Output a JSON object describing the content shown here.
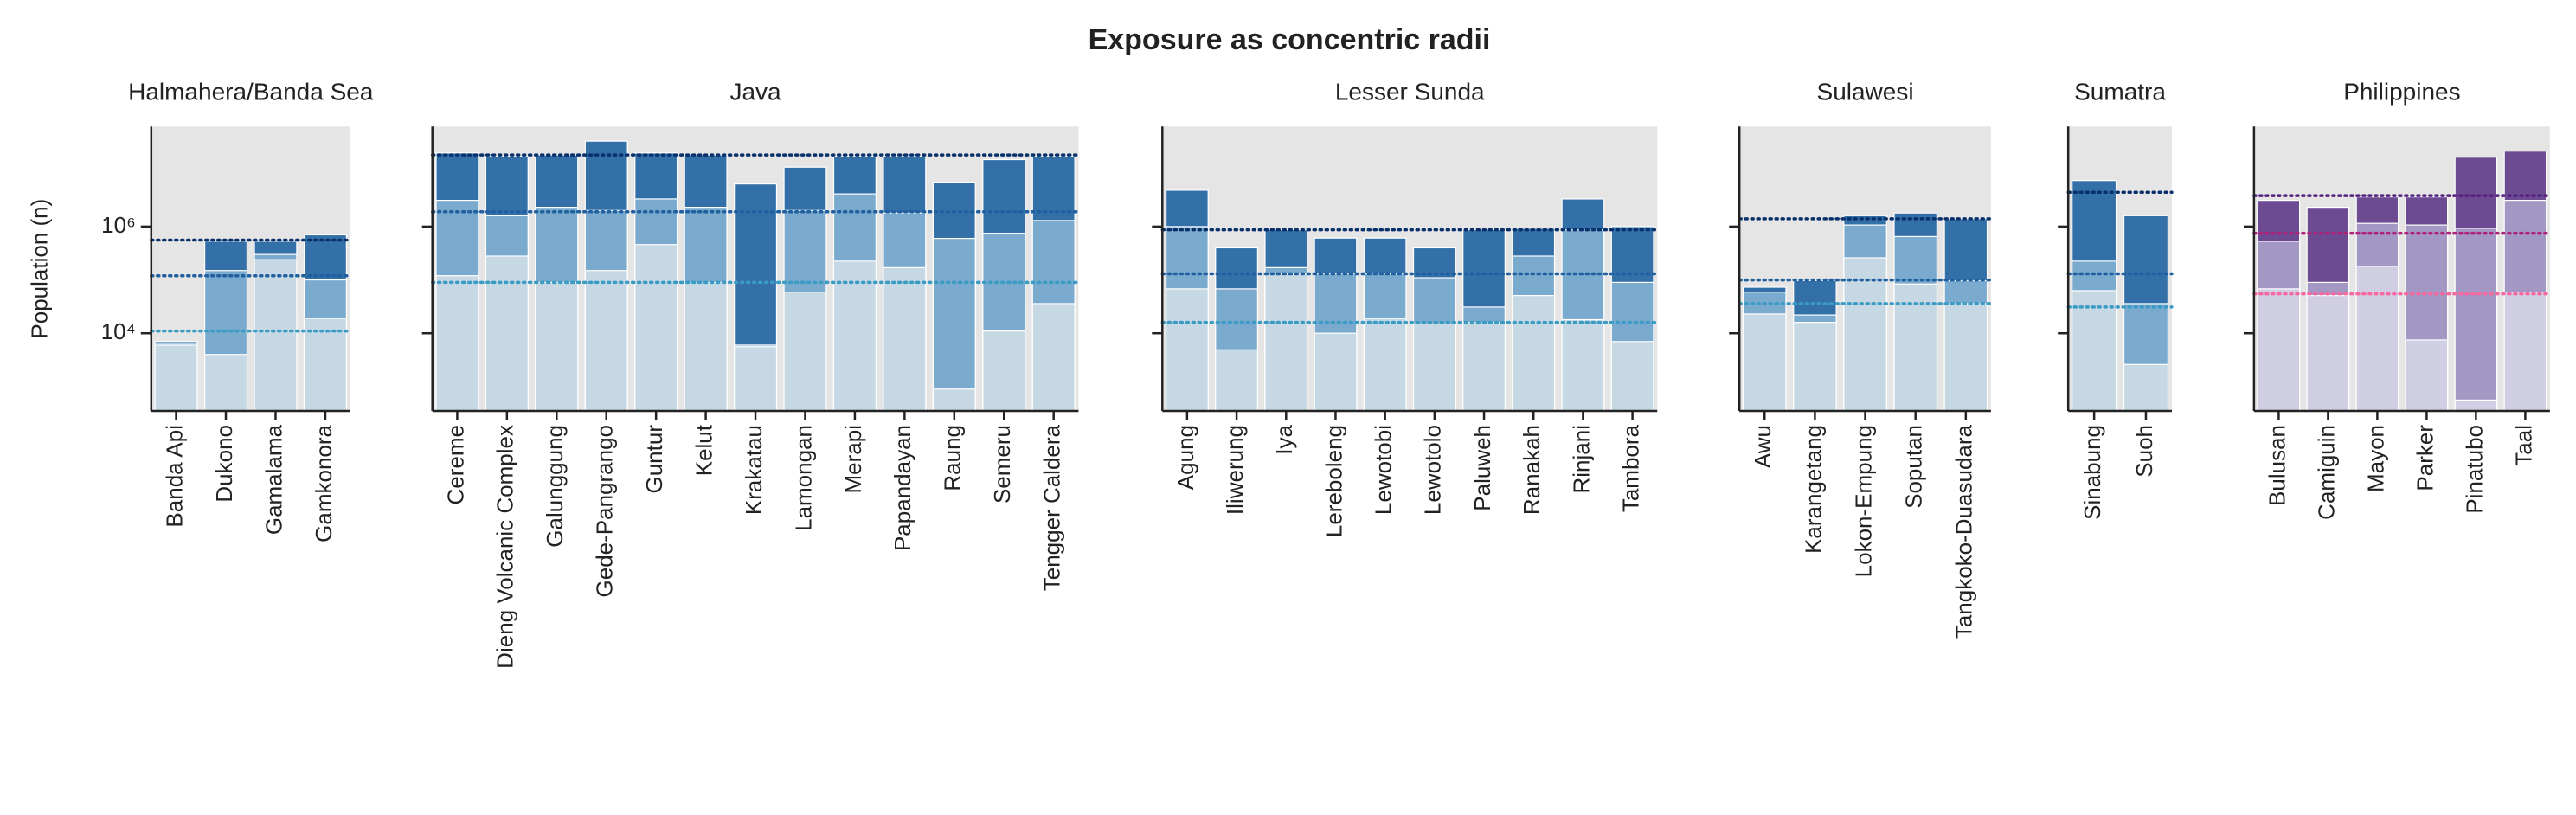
{
  "title": "Exposure as concentric radii",
  "chart_data": [
    {
      "type": "bar",
      "title": "Halmahera/Banda Sea",
      "ylabel": "Population (n)",
      "log_scale": true,
      "ylim": [
        350,
        75000000
      ],
      "yticks": [
        {
          "value": 10000,
          "label": "10⁴"
        },
        {
          "value": 1000000,
          "label": "10⁶"
        }
      ],
      "categories": [
        "Banda Api",
        "Dukono",
        "Gamalama",
        "Gamkonora"
      ],
      "series": [
        {
          "color": "#c5d8e3",
          "line_color": "#3a9bc5",
          "reference": 11000,
          "values": [
            6000,
            4000,
            240000,
            19000
          ]
        },
        {
          "color": "#7aaacd",
          "line_color": "#2060a0",
          "reference": 120000,
          "values": [
            6500,
            150000,
            300000,
            100000
          ]
        },
        {
          "color": "#3470a8",
          "line_color": "#08306b",
          "reference": 560000,
          "values": [
            7000,
            530000,
            530000,
            700000
          ]
        }
      ]
    },
    {
      "type": "bar",
      "title": "Java",
      "log_scale": true,
      "ylim": [
        350,
        75000000
      ],
      "yticks": [
        10000,
        1000000
      ],
      "categories": [
        "Cereme",
        "Dieng Volcanic Complex",
        "Galunggung",
        "Gede-Pangrango",
        "Guntur",
        "Kelut",
        "Krakatau",
        "Lamongan",
        "Merapi",
        "Papandayan",
        "Raung",
        "Semeru",
        "Tengger Caldera"
      ],
      "series": [
        {
          "color": "#c5d8e3",
          "line_color": "#3a9bc5",
          "reference": 90000,
          "values": [
            120000,
            280000,
            90000,
            150000,
            460000,
            90000,
            5600,
            59000,
            225000,
            170000,
            900,
            11000,
            36000
          ]
        },
        {
          "color": "#7aaacd",
          "line_color": "#2060a0",
          "reference": 1900000,
          "values": [
            3100000,
            1600000,
            2300000,
            2000000,
            3300000,
            2300000,
            6000,
            2000000,
            4100000,
            1800000,
            600000,
            750000,
            1300000
          ]
        },
        {
          "color": "#3470a8",
          "line_color": "#08306b",
          "reference": 22000000,
          "values": [
            24000000,
            21000000,
            22000000,
            40000000,
            24000000,
            22000000,
            6300000,
            13000000,
            21000000,
            21000000,
            6800000,
            18000000,
            21000000
          ]
        }
      ]
    },
    {
      "type": "bar",
      "title": "Lesser Sunda",
      "log_scale": true,
      "ylim": [
        350,
        75000000
      ],
      "yticks": [
        10000,
        1000000
      ],
      "categories": [
        "Agung",
        "Iliwerung",
        "Iya",
        "Lereboleng",
        "Lewotobi",
        "Lewotolo",
        "Paluweh",
        "Ranakah",
        "Rinjani",
        "Tambora"
      ],
      "series": [
        {
          "color": "#c5d8e3",
          "line_color": "#3a9bc5",
          "reference": 16000,
          "values": [
            68000,
            4900,
            130000,
            10000,
            19000,
            15000,
            16000,
            51000,
            18000,
            7000
          ]
        },
        {
          "color": "#7aaacd",
          "line_color": "#2060a0",
          "reference": 130000,
          "values": [
            1000000,
            68000,
            170000,
            130000,
            130000,
            110000,
            31000,
            280000,
            870000,
            90000
          ]
        },
        {
          "color": "#3470a8",
          "line_color": "#08306b",
          "reference": 870000,
          "values": [
            4800000,
            400000,
            870000,
            610000,
            610000,
            400000,
            870000,
            930000,
            3300000,
            1000000
          ]
        }
      ]
    },
    {
      "type": "bar",
      "title": "Sulawesi",
      "log_scale": true,
      "ylim": [
        350,
        75000000
      ],
      "yticks": [
        10000,
        1000000
      ],
      "categories": [
        "Awu",
        "Karangetang",
        "Lokon-Empung",
        "Soputan",
        "Tangkoko-Duasudara"
      ],
      "series": [
        {
          "color": "#c5d8e3",
          "line_color": "#3a9bc5",
          "reference": 36000,
          "values": [
            23000,
            16000,
            260000,
            84000,
            36000
          ]
        },
        {
          "color": "#7aaacd",
          "line_color": "#2060a0",
          "reference": 100000,
          "values": [
            59000,
            22000,
            1070000,
            650000,
            97000
          ]
        },
        {
          "color": "#3470a8",
          "line_color": "#08306b",
          "reference": 1400000,
          "values": [
            73000,
            97000,
            1600000,
            1800000,
            1400000
          ]
        }
      ]
    },
    {
      "type": "bar",
      "title": "Sumatra",
      "log_scale": true,
      "ylim": [
        350,
        75000000
      ],
      "yticks": [
        10000,
        1000000
      ],
      "categories": [
        "Sinabung",
        "Suoh"
      ],
      "series": [
        {
          "color": "#c5d8e3",
          "line_color": "#3a9bc5",
          "reference": 31000,
          "values": [
            63000,
            2600
          ]
        },
        {
          "color": "#7aaacd",
          "line_color": "#2060a0",
          "reference": 130000,
          "values": [
            225000,
            36000
          ]
        },
        {
          "color": "#3470a8",
          "line_color": "#08306b",
          "reference": 4400000,
          "values": [
            7300000,
            1600000
          ]
        }
      ]
    },
    {
      "type": "bar",
      "title": "Philippines",
      "log_scale": true,
      "ylim": [
        350,
        75000000
      ],
      "yticks": [
        10000,
        1000000
      ],
      "categories": [
        "Bulusan",
        "Camiguin",
        "Mayon",
        "Parker",
        "Pinatubo",
        "Taal"
      ],
      "series": [
        {
          "color": "#d0cee3",
          "line_color": "#f768a1",
          "reference": 55000,
          "values": [
            68000,
            51000,
            180000,
            7500,
            560,
            59000
          ]
        },
        {
          "color": "#a397c3",
          "line_color": "#ae2279",
          "reference": 750000,
          "values": [
            530000,
            90000,
            1150000,
            1070000,
            930000,
            3100000
          ]
        },
        {
          "color": "#6c4b93",
          "line_color": "#54217f",
          "reference": 3800000,
          "values": [
            3100000,
            2300000,
            3600000,
            3600000,
            20000000,
            26000000
          ]
        }
      ]
    }
  ]
}
